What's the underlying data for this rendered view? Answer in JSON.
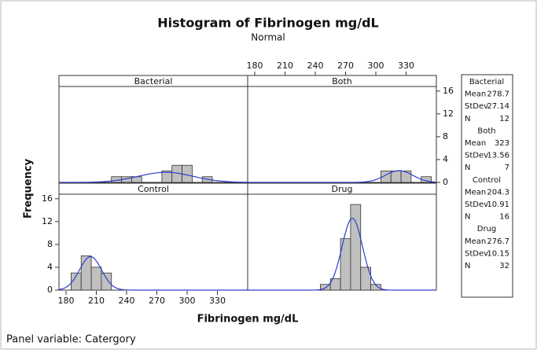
{
  "chart_data": {
    "type": "histogram",
    "title": "Histogram of Fibrinogen mg/dL",
    "subtitle": "Normal",
    "x_label": "Fibrinogen mg/dL",
    "y_label": "Frequency",
    "footer": "Panel variable: Catergory",
    "bar_color": "#c0c0c0",
    "curve_color": "#2b3fd0",
    "xlim": [
      173,
      360
    ],
    "xticks": [
      180,
      210,
      240,
      270,
      300,
      330
    ],
    "ylim": [
      0,
      16.8
    ],
    "yticks": [
      0,
      4,
      8,
      12,
      16
    ],
    "stat_labels": [
      "Mean",
      "StDev",
      "N"
    ],
    "panels": [
      {
        "name": "Bacterial",
        "mean": 278.7,
        "stdev": 27.14,
        "n": 12,
        "bins": [
          225,
          235,
          245,
          255,
          265,
          275,
          285,
          295,
          305,
          315,
          325
        ],
        "counts": [
          1,
          1,
          1,
          0,
          0,
          2,
          3,
          3,
          0,
          1
        ]
      },
      {
        "name": "Both",
        "mean": 323,
        "stdev": 13.56,
        "n": 7,
        "bins": [
          305,
          315,
          325,
          335,
          345,
          355
        ],
        "counts": [
          2,
          2,
          2,
          0,
          1
        ]
      },
      {
        "name": "Control",
        "mean": 204.3,
        "stdev": 10.91,
        "n": 16,
        "bins": [
          185,
          195,
          205,
          215,
          225
        ],
        "counts": [
          3,
          6,
          4,
          3
        ]
      },
      {
        "name": "Drug",
        "mean": 276.7,
        "stdev": 10.15,
        "n": 32,
        "bins": [
          245,
          255,
          265,
          275,
          285,
          295,
          305
        ],
        "counts": [
          1,
          2,
          9,
          15,
          4,
          1
        ]
      }
    ]
  }
}
